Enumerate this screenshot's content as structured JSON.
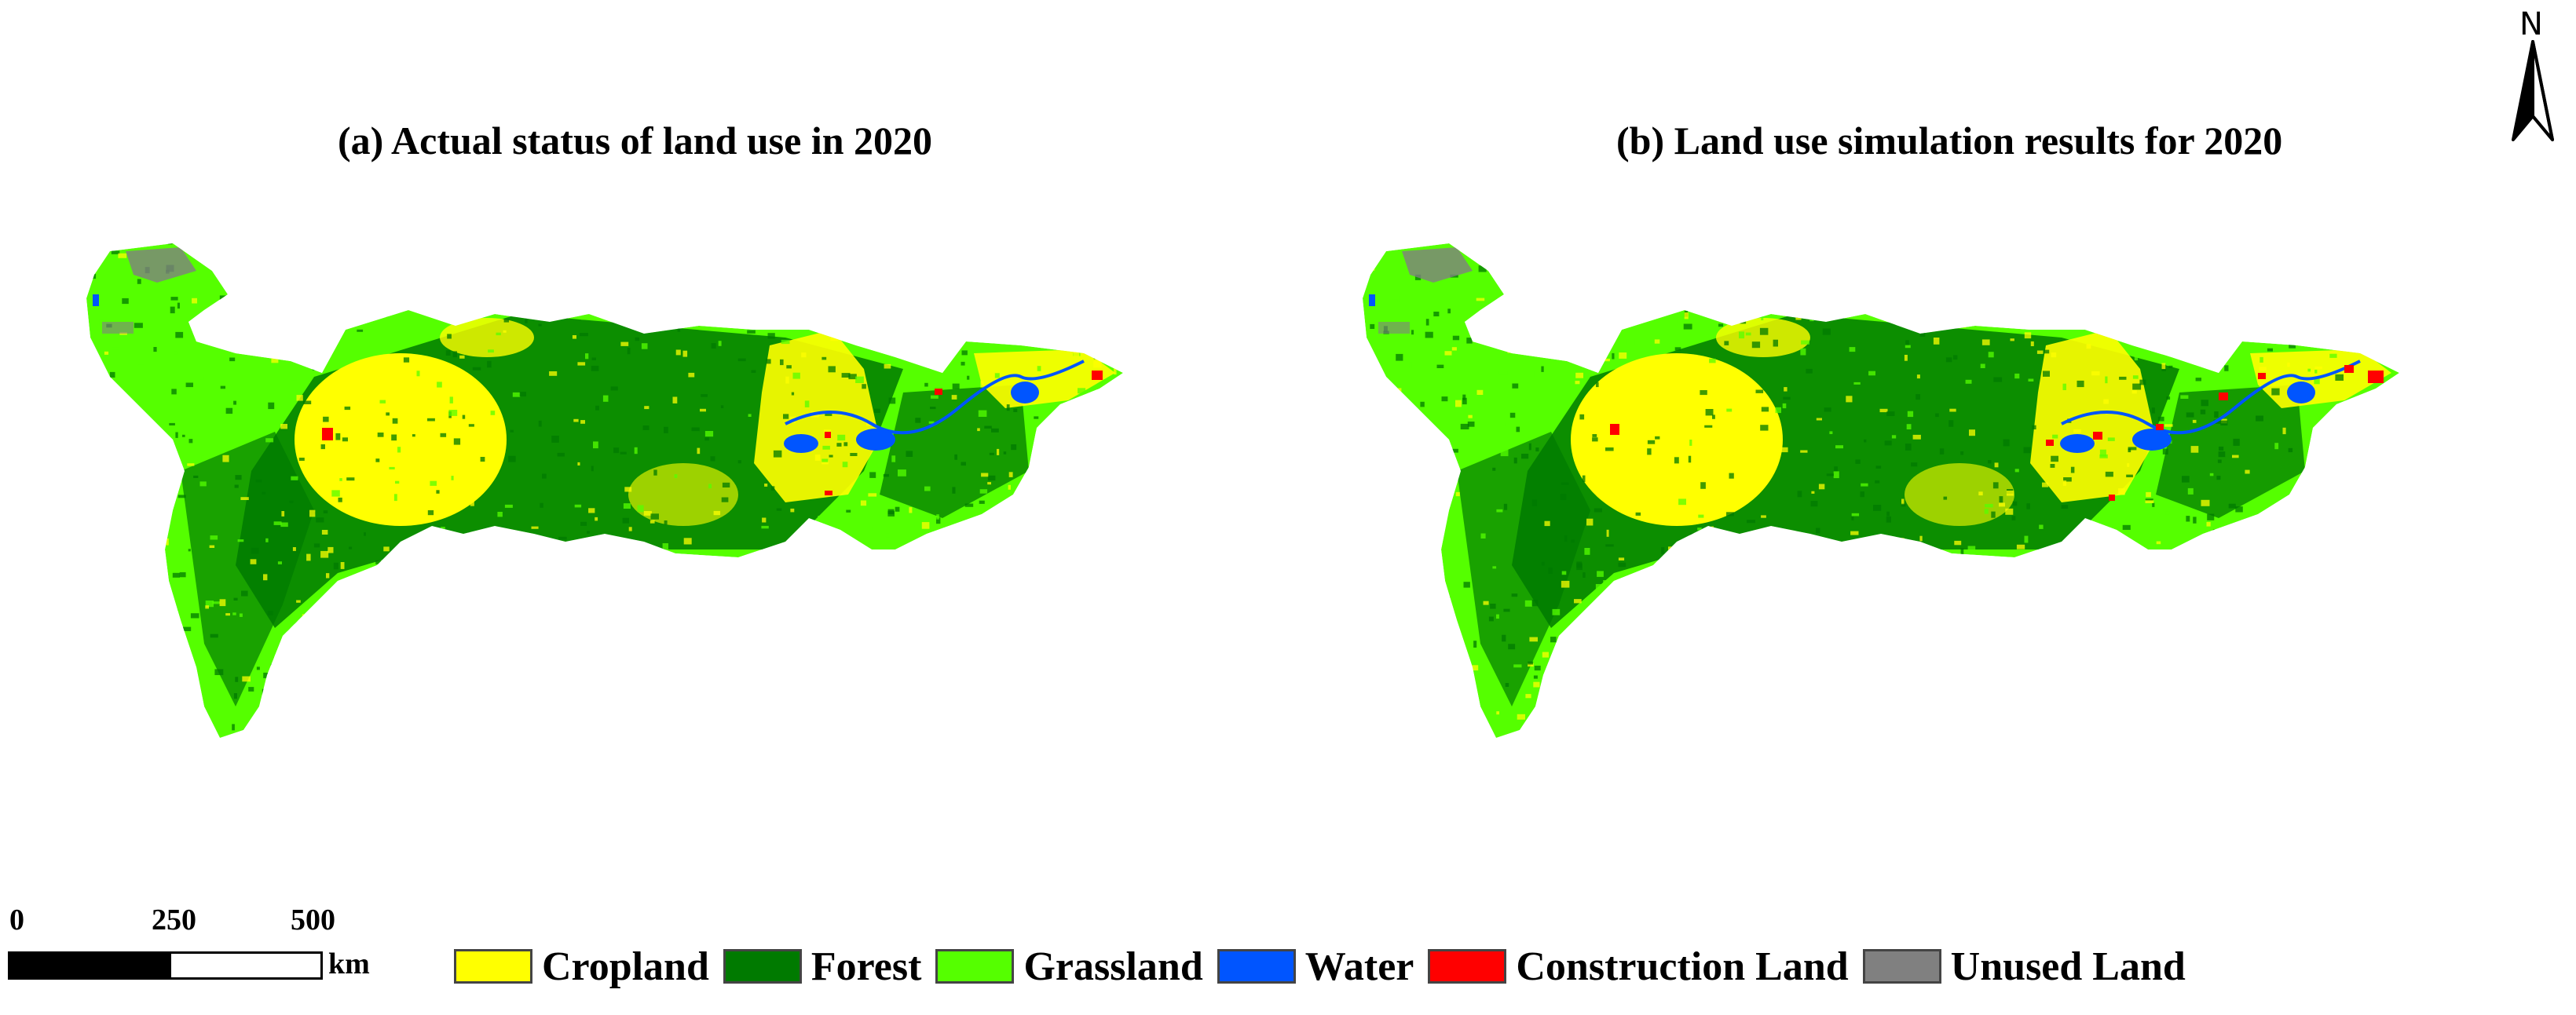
{
  "titles": {
    "a": "(a) Actual status of land use in 2020",
    "b": "(b) Land use simulation results for 2020"
  },
  "north_arrow": {
    "label": "N"
  },
  "scale_bar": {
    "ticks": [
      "0",
      "250",
      "500"
    ],
    "unit": "km"
  },
  "legend": [
    {
      "label": "Cropland",
      "color": "#ffff00"
    },
    {
      "label": "Forest",
      "color": "#007a00"
    },
    {
      "label": "Grassland",
      "color": "#55ff00"
    },
    {
      "label": "Water",
      "color": "#0055ff"
    },
    {
      "label": "Construction Land",
      "color": "#ff0000"
    },
    {
      "label": "Unused Land",
      "color": "#808080"
    }
  ]
}
